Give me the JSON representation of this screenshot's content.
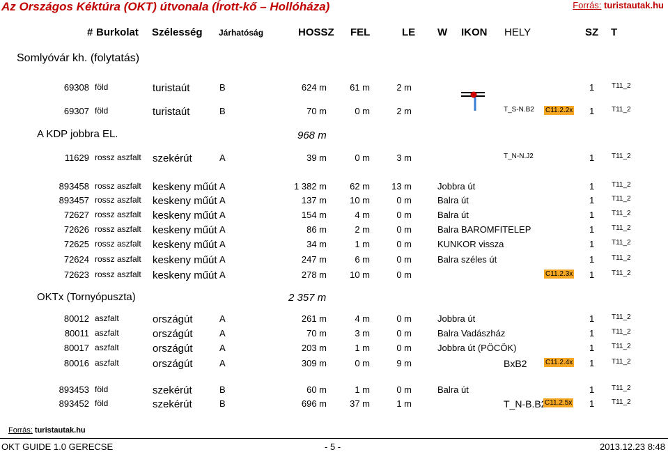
{
  "header": {
    "title": "Az Országos Kéktúra (OKT) útvonala (Írott-kő – Hollóháza)",
    "source_label": "Forrás:",
    "source_value": "turistautak.hu"
  },
  "columns": {
    "num": "#",
    "surface": "Burkolat",
    "width": "Szélesség",
    "passability": "Járhatóság",
    "length": "HOSSZ",
    "up": "FEL",
    "down": "LE",
    "w": "W",
    "icon": "IKON",
    "place": "HELY",
    "sz": "SZ",
    "t": "T"
  },
  "sections": {
    "somlyovar": "Somlyóvár kh. (folytatás)",
    "kdp": "A KDP jobbra EL.",
    "kdp_sum": "968 m",
    "oktx": "OKTx (Tornyópuszta)",
    "oktx_sum": "2 357 m"
  },
  "rows": [
    {
      "id": "69308",
      "surface": "föld",
      "width": "turistaút",
      "pass": "B",
      "len": "624 m",
      "up": "61 m",
      "down": "2 m",
      "dir": "",
      "icon": "",
      "place": "",
      "sz": "1",
      "t": "T11_2"
    },
    {
      "id": "69307",
      "surface": "föld",
      "width": "turistaút",
      "pass": "B",
      "len": "70 m",
      "up": "0 m",
      "down": "2 m",
      "dir": "",
      "icon": "T_S-N.B2",
      "place": "C11.2.2x",
      "sz": "1",
      "t": "T11_2"
    },
    {
      "id": "11629",
      "surface": "rossz aszfalt",
      "width": "szekérút",
      "pass": "A",
      "len": "39 m",
      "up": "0 m",
      "down": "3 m",
      "dir": "",
      "icon": "T_N-N.J2",
      "place": "",
      "sz": "1",
      "t": "T11_2"
    },
    {
      "id": "893458",
      "surface": "rossz aszfalt",
      "width": "keskeny műút",
      "pass": "A",
      "len": "1 382 m",
      "up": "62 m",
      "down": "13 m",
      "dir": "Jobbra út",
      "icon": "",
      "place": "",
      "sz": "1",
      "t": "T11_2"
    },
    {
      "id": "893457",
      "surface": "rossz aszfalt",
      "width": "keskeny műút",
      "pass": "A",
      "len": "137 m",
      "up": "10 m",
      "down": "0 m",
      "dir": "Balra út",
      "icon": "",
      "place": "",
      "sz": "1",
      "t": "T11_2"
    },
    {
      "id": "72627",
      "surface": "rossz aszfalt",
      "width": "keskeny műút",
      "pass": "A",
      "len": "154 m",
      "up": "4 m",
      "down": "0 m",
      "dir": "Balra út",
      "icon": "",
      "place": "",
      "sz": "1",
      "t": "T11_2"
    },
    {
      "id": "72626",
      "surface": "rossz aszfalt",
      "width": "keskeny műút",
      "pass": "A",
      "len": "86 m",
      "up": "2 m",
      "down": "0 m",
      "dir": "Balra BAROMFITELEP",
      "icon": "",
      "place": "",
      "sz": "1",
      "t": "T11_2"
    },
    {
      "id": "72625",
      "surface": "rossz aszfalt",
      "width": "keskeny műút",
      "pass": "A",
      "len": "34 m",
      "up": "1 m",
      "down": "0 m",
      "dir": "KUNKOR vissza",
      "icon": "",
      "place": "",
      "sz": "1",
      "t": "T11_2"
    },
    {
      "id": "72624",
      "surface": "rossz aszfalt",
      "width": "keskeny műút",
      "pass": "A",
      "len": "247 m",
      "up": "6 m",
      "down": "0 m",
      "dir": "Balra széles út",
      "icon": "",
      "place": "",
      "sz": "1",
      "t": "T11_2"
    },
    {
      "id": "72623",
      "surface": "rossz aszfalt",
      "width": "keskeny műút",
      "pass": "A",
      "len": "278 m",
      "up": "10 m",
      "down": "0 m",
      "dir": "",
      "icon": "",
      "place": "C11.2.3x",
      "sz": "1",
      "t": "T11_2"
    },
    {
      "id": "80012",
      "surface": "aszfalt",
      "width": "országút",
      "pass": "A",
      "len": "261 m",
      "up": "4 m",
      "down": "0 m",
      "dir": "Jobbra út",
      "icon": "",
      "place": "",
      "sz": "1",
      "t": "T11_2"
    },
    {
      "id": "80011",
      "surface": "aszfalt",
      "width": "országút",
      "pass": "A",
      "len": "70 m",
      "up": "3 m",
      "down": "0 m",
      "dir": "Balra Vadászház",
      "icon": "",
      "place": "",
      "sz": "1",
      "t": "T11_2"
    },
    {
      "id": "80017",
      "surface": "aszfalt",
      "width": "országút",
      "pass": "A",
      "len": "203 m",
      "up": "1 m",
      "down": "0 m",
      "dir": "Jobbra út (PÖCÖK)",
      "icon": "",
      "place": "",
      "sz": "1",
      "t": "T11_2"
    },
    {
      "id": "80016",
      "surface": "aszfalt",
      "width": "országút",
      "pass": "A",
      "len": "309 m",
      "up": "0 m",
      "down": "9 m",
      "dir": "",
      "icon": "BxB2",
      "place": "C11.2.4x",
      "sz": "1",
      "t": "T11_2"
    },
    {
      "id": "893453",
      "surface": "föld",
      "width": "szekérút",
      "pass": "B",
      "len": "60 m",
      "up": "1 m",
      "down": "0 m",
      "dir": "Balra út",
      "icon": "",
      "place": "",
      "sz": "1",
      "t": "T11_2"
    },
    {
      "id": "893452",
      "surface": "föld",
      "width": "szekérút",
      "pass": "B",
      "len": "696 m",
      "up": "37 m",
      "down": "1 m",
      "dir": "",
      "icon": "T_N-B.B2",
      "place": "C11.2.5x",
      "sz": "1",
      "t": "T11_2"
    }
  ],
  "footer": {
    "source_label": "Forrás:",
    "source_value": "turistautak.hu",
    "guide": "OKT GUIDE 1.0  GERECSE",
    "page": "- 5 -",
    "date": "2013.12.23  8:48"
  },
  "colors": {
    "title": "#c00000",
    "highlight": "#f5a623",
    "marker": "#cc0000",
    "pin": "#3a7fd5"
  }
}
